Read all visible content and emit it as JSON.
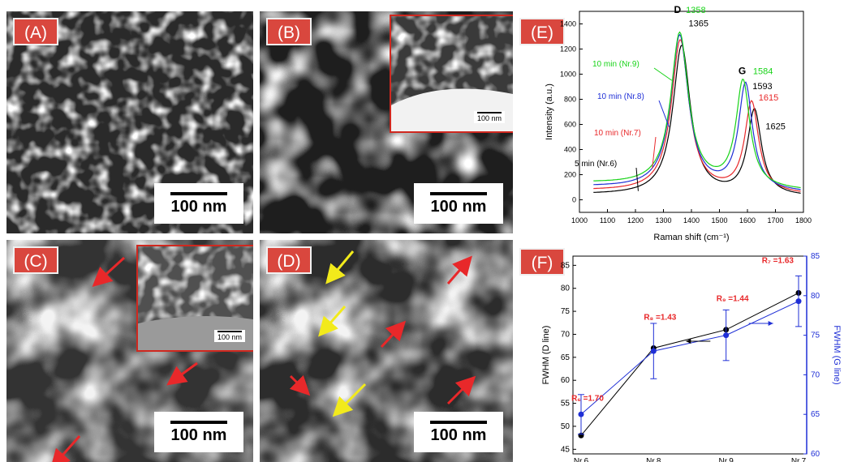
{
  "panels": {
    "A": {
      "label": "(A)",
      "scale": "100 nm"
    },
    "B": {
      "label": "(B)",
      "scale": "100 nm",
      "inset_scale": "100 nm"
    },
    "C": {
      "label": "(C)",
      "scale": "100 nm",
      "inset_scale": "100 nm"
    },
    "D": {
      "label": "(D)",
      "scale": "100 nm"
    },
    "E": {
      "label": "(E)"
    },
    "F": {
      "label": "(F)"
    }
  },
  "colors": {
    "label_bg": "#d9473e",
    "red_arrow": "#e8282a",
    "yellow_arrow": "#f2ea1b",
    "inset_border": "#d0281f"
  },
  "chart_data": [
    {
      "id": "E",
      "type": "line",
      "xlabel": "Raman shift (cm⁻¹)",
      "ylabel": "Intensity  (a.u.)",
      "xlim": [
        1000,
        1800
      ],
      "ylim": [
        -100,
        1500
      ],
      "xticks": [
        1000,
        1100,
        1200,
        1300,
        1400,
        1500,
        1600,
        1700,
        1800
      ],
      "yticks": [
        0,
        200,
        400,
        600,
        800,
        1000,
        1200,
        1400
      ],
      "series": [
        {
          "name": "5 min (Nr.6)",
          "color": "#000000",
          "peakD": [
            1365,
            1230
          ],
          "peakG": [
            1625,
            700
          ],
          "base": 40
        },
        {
          "name": "10 min (Nr.7)",
          "color": "#e8282a",
          "peakD": [
            1360,
            1280
          ],
          "peakG": [
            1615,
            760
          ],
          "base": 70
        },
        {
          "name": "10 min (Nr.8)",
          "color": "#1f2fd6",
          "peakD": [
            1358,
            1320
          ],
          "peakG": [
            1593,
            900
          ],
          "base": 100
        },
        {
          "name": "10 min (Nr.9)",
          "color": "#18d318",
          "peakD": [
            1358,
            1345
          ],
          "peakG": [
            1584,
            920
          ],
          "base": 130
        }
      ],
      "annotations": {
        "D": "D",
        "G": "G",
        "d1": "1358",
        "d2": "1365",
        "g1": "1584",
        "g2": "1593",
        "g3": "1615",
        "g4": "1625"
      }
    },
    {
      "id": "F",
      "type": "line",
      "categories": [
        "Nr.6",
        "Nr.8",
        "Nr.9",
        "Nr.7"
      ],
      "ylabel_left": "FWHM (D line)",
      "ylabel_right": "FWHM (G line)",
      "ylim_left": [
        44,
        87
      ],
      "ylim_right": [
        60,
        85
      ],
      "yticks_left": [
        45,
        50,
        55,
        60,
        65,
        70,
        75,
        80,
        85
      ],
      "yticks_right": [
        60,
        65,
        70,
        75,
        80,
        85
      ],
      "series": [
        {
          "axis": "left",
          "color": "#000000",
          "values": [
            48,
            67,
            71,
            79
          ]
        },
        {
          "axis": "right",
          "color": "#1f2fd6",
          "values": [
            65,
            73,
            75,
            79.3
          ],
          "err": [
            2.5,
            3.5,
            3.2,
            3.2
          ]
        }
      ],
      "ratios": [
        {
          "label": "R₆ =1.70",
          "sub": ""
        },
        {
          "label": "R₈ =1.43",
          "sub": ""
        },
        {
          "label": "R₉ =1.44",
          "sub": ""
        },
        {
          "label": "R₇ =1.63",
          "sub": ""
        }
      ]
    }
  ]
}
